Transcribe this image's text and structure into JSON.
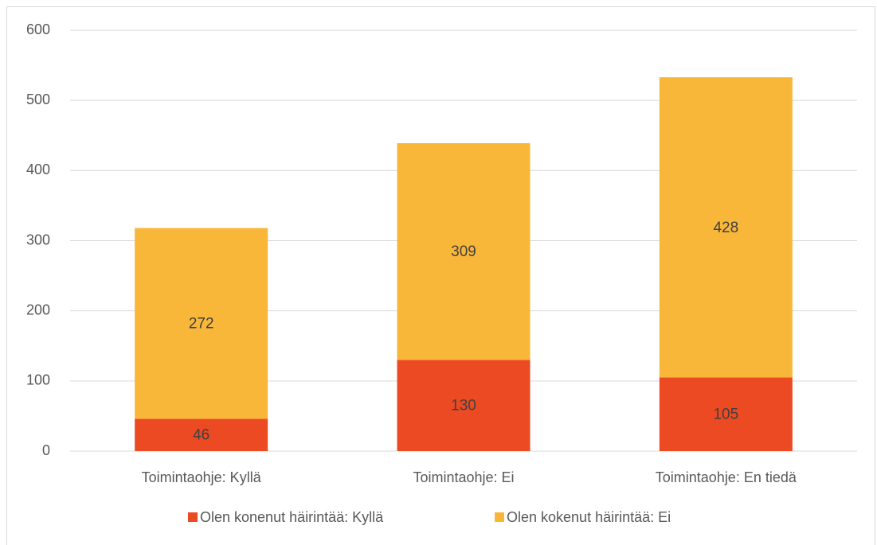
{
  "chart_data": {
    "type": "stacked_bar",
    "categories": [
      "Toimintaohje: Kyllä",
      "Toimintaohje: Ei",
      "Toimintaohje: En tiedä"
    ],
    "series": [
      {
        "name": "Olen konenut häirintää: Kyllä",
        "color": "#ec4a22",
        "values": [
          46,
          130,
          105
        ]
      },
      {
        "name": "Olen kokenut häirintää: Ei",
        "color": "#f9b73a",
        "values": [
          272,
          309,
          428
        ]
      }
    ],
    "ylim": [
      0,
      600
    ],
    "yticks": [
      0,
      100,
      200,
      300,
      400,
      500,
      600
    ],
    "grid": true,
    "legend": "bottom"
  }
}
